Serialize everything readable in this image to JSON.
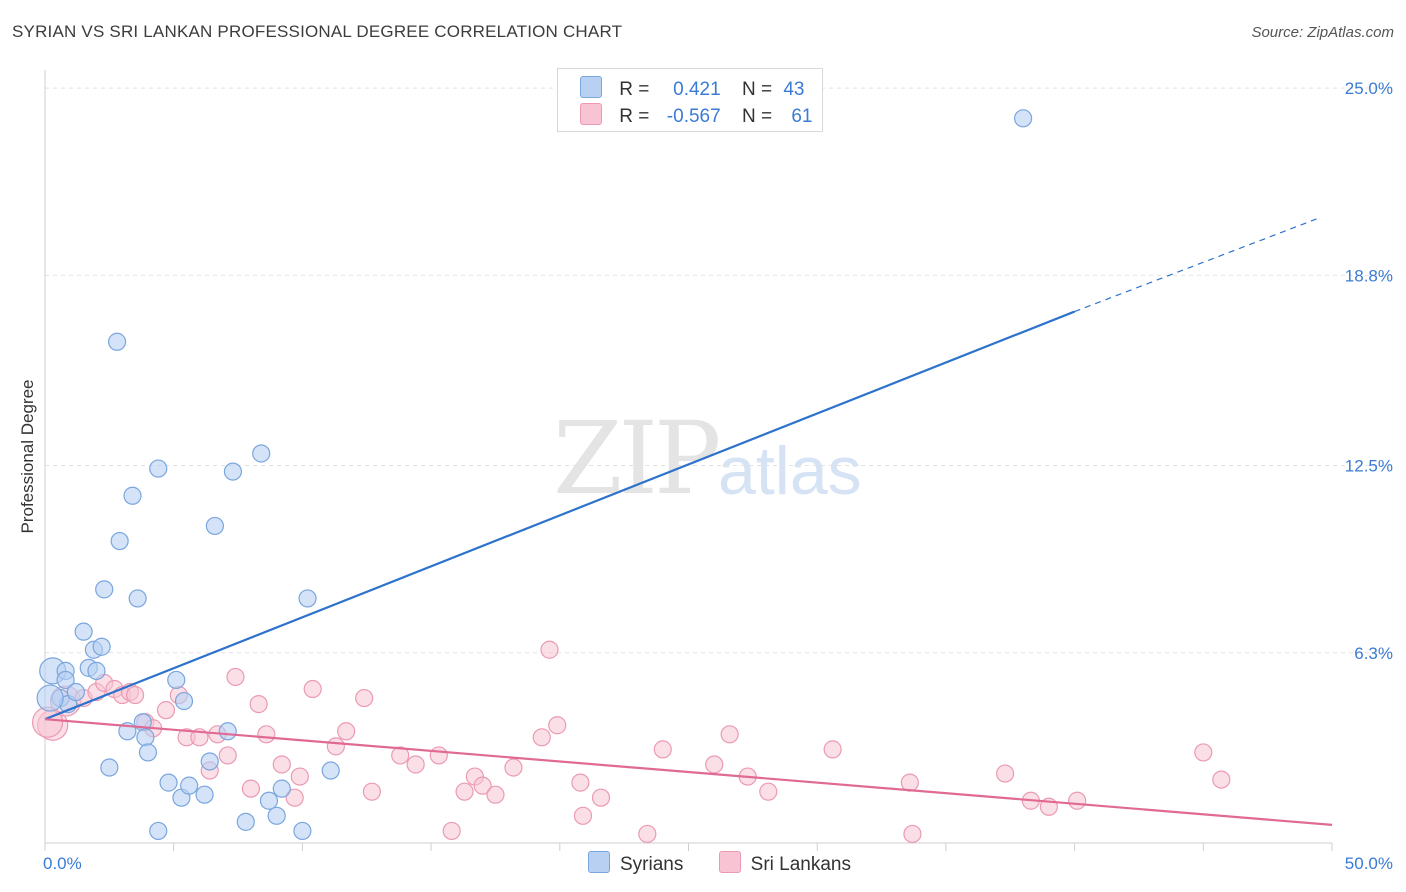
{
  "header": {
    "title": "SYRIAN VS SRI LANKAN PROFESSIONAL DEGREE CORRELATION CHART",
    "source": "Source: ZipAtlas.com"
  },
  "watermark": {
    "zip": "ZIP",
    "atlas": "atlas"
  },
  "legend": {
    "r_label": "R =",
    "n_label": "N =",
    "syrians": {
      "r": "0.421",
      "n": "43"
    },
    "srilankans": {
      "r": "-0.567",
      "n": "61"
    }
  },
  "bottom_legend": {
    "syrians": "Syrians",
    "srilankans": "Sri Lankans"
  },
  "colors": {
    "syrians_fill": "#b8d1f3",
    "syrians_stroke": "#7aa6de",
    "syrians_line": "#2d73cc",
    "srilankans_fill": "#f8c4d3",
    "srilankans_stroke": "#eb9ab3",
    "srilankans_line": "#e06a93",
    "tick_color": "#3a7bd5"
  },
  "chart_data": {
    "type": "scatter",
    "title": "SYRIAN VS SRI LANKAN PROFESSIONAL DEGREE CORRELATION CHART",
    "xlabel": "",
    "ylabel": "Professional Degree",
    "xlim": [
      0,
      50
    ],
    "ylim": [
      0,
      25.6
    ],
    "x_tick_labels": [
      "0.0%",
      "50.0%"
    ],
    "y_ticks": [
      6.3,
      12.5,
      18.8,
      25.0
    ],
    "y_tick_labels": [
      "6.3%",
      "12.5%",
      "18.8%",
      "25.0%"
    ],
    "series": [
      {
        "name": "Syrians",
        "r": 0.421,
        "n": 43,
        "trend": {
          "x0": 0,
          "y0": 4.1,
          "x1": 40,
          "y1": 17.6,
          "dashed_to_x": 49.5,
          "dashed_to_y": 20.7
        },
        "points": [
          [
            0.3,
            5.7
          ],
          [
            0.8,
            5.7
          ],
          [
            0.8,
            5.4
          ],
          [
            0.6,
            4.8
          ],
          [
            0.9,
            4.6
          ],
          [
            1.2,
            5.0
          ],
          [
            1.5,
            7.0
          ],
          [
            1.7,
            5.8
          ],
          [
            1.9,
            6.4
          ],
          [
            2.0,
            5.7
          ],
          [
            2.2,
            6.5
          ],
          [
            2.3,
            8.4
          ],
          [
            2.5,
            2.5
          ],
          [
            2.8,
            16.6
          ],
          [
            2.9,
            10.0
          ],
          [
            3.2,
            3.7
          ],
          [
            3.4,
            11.5
          ],
          [
            3.6,
            8.1
          ],
          [
            3.8,
            4.0
          ],
          [
            3.9,
            3.5
          ],
          [
            4.0,
            3.0
          ],
          [
            4.4,
            12.4
          ],
          [
            4.4,
            0.4
          ],
          [
            4.8,
            2.0
          ],
          [
            5.1,
            5.4
          ],
          [
            5.3,
            1.5
          ],
          [
            5.4,
            4.7
          ],
          [
            5.6,
            1.9
          ],
          [
            6.2,
            1.6
          ],
          [
            6.4,
            2.7
          ],
          [
            6.6,
            10.5
          ],
          [
            7.1,
            3.7
          ],
          [
            7.3,
            12.3
          ],
          [
            7.8,
            0.7
          ],
          [
            8.4,
            12.9
          ],
          [
            8.7,
            1.4
          ],
          [
            9.0,
            0.9
          ],
          [
            9.2,
            1.8
          ],
          [
            10.0,
            0.4
          ],
          [
            10.2,
            8.1
          ],
          [
            11.1,
            2.4
          ],
          [
            38.0,
            24.0
          ],
          [
            0.2,
            4.8
          ]
        ]
      },
      {
        "name": "Sri Lankans",
        "r": -0.567,
        "n": 61,
        "trend": {
          "x0": 0,
          "y0": 4.1,
          "x1": 50,
          "y1": 0.6
        },
        "points": [
          [
            0.3,
            3.9
          ],
          [
            0.8,
            4.7
          ],
          [
            1.5,
            4.8
          ],
          [
            2.0,
            5.0
          ],
          [
            2.3,
            5.3
          ],
          [
            2.7,
            5.1
          ],
          [
            3.0,
            4.9
          ],
          [
            3.3,
            5.0
          ],
          [
            3.5,
            4.9
          ],
          [
            3.9,
            4.0
          ],
          [
            4.2,
            3.8
          ],
          [
            4.7,
            4.4
          ],
          [
            5.2,
            4.9
          ],
          [
            5.5,
            3.5
          ],
          [
            6.0,
            3.5
          ],
          [
            6.4,
            2.4
          ],
          [
            6.7,
            3.6
          ],
          [
            7.1,
            2.9
          ],
          [
            7.4,
            5.5
          ],
          [
            8.0,
            1.8
          ],
          [
            8.3,
            4.6
          ],
          [
            8.6,
            3.6
          ],
          [
            9.2,
            2.6
          ],
          [
            9.7,
            1.5
          ],
          [
            9.9,
            2.2
          ],
          [
            10.4,
            5.1
          ],
          [
            11.3,
            3.2
          ],
          [
            11.7,
            3.7
          ],
          [
            12.4,
            4.8
          ],
          [
            12.7,
            1.7
          ],
          [
            13.8,
            2.9
          ],
          [
            14.4,
            2.6
          ],
          [
            15.3,
            2.9
          ],
          [
            15.8,
            0.4
          ],
          [
            16.3,
            1.7
          ],
          [
            16.7,
            2.2
          ],
          [
            17.0,
            1.9
          ],
          [
            17.5,
            1.6
          ],
          [
            18.2,
            2.5
          ],
          [
            19.3,
            3.5
          ],
          [
            19.6,
            6.4
          ],
          [
            19.9,
            3.9
          ],
          [
            20.8,
            2.0
          ],
          [
            20.9,
            0.9
          ],
          [
            21.6,
            1.5
          ],
          [
            23.4,
            0.3
          ],
          [
            24.0,
            3.1
          ],
          [
            26.0,
            2.6
          ],
          [
            26.6,
            3.6
          ],
          [
            27.3,
            2.2
          ],
          [
            28.1,
            1.7
          ],
          [
            30.6,
            3.1
          ],
          [
            33.6,
            2.0
          ],
          [
            33.7,
            0.3
          ],
          [
            37.3,
            2.3
          ],
          [
            38.3,
            1.4
          ],
          [
            39.0,
            1.2
          ],
          [
            40.1,
            1.4
          ],
          [
            45.0,
            3.0
          ],
          [
            45.7,
            2.1
          ],
          [
            0.1,
            4.0
          ]
        ]
      }
    ]
  }
}
